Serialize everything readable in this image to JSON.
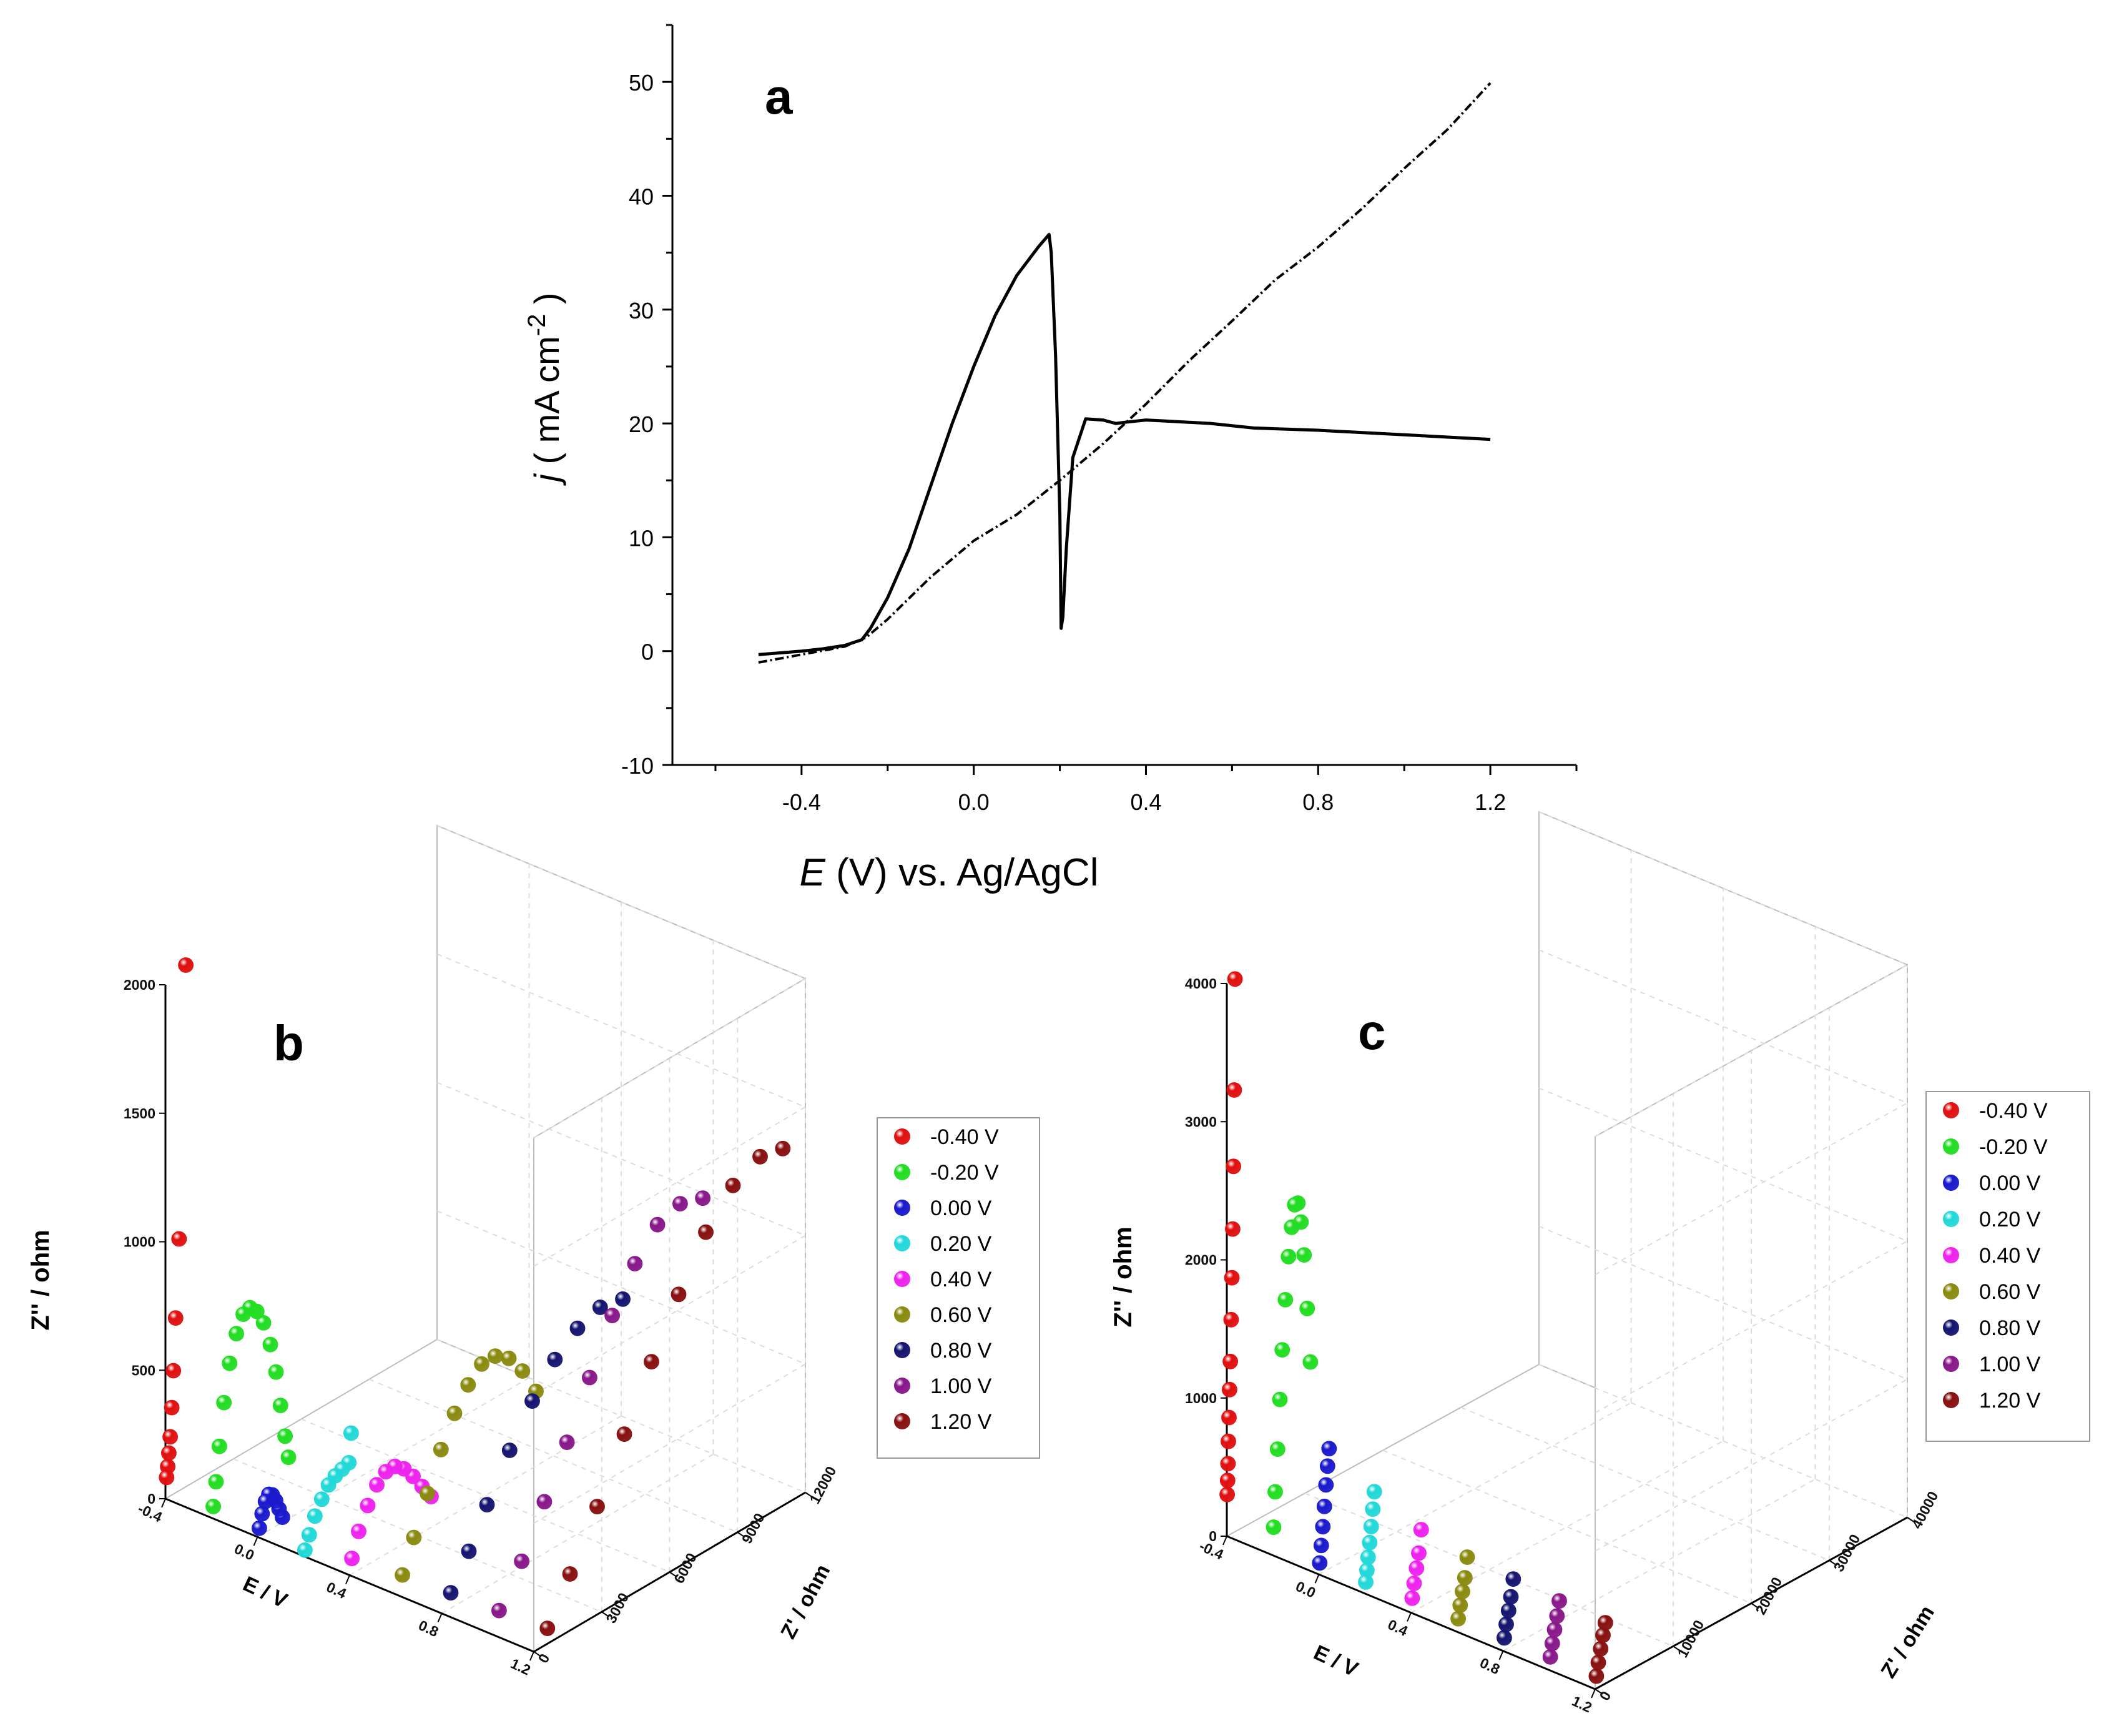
{
  "chart_data": [
    {
      "id": "a",
      "type": "line",
      "panel_label": "a",
      "xlabel": {
        "italic": "E",
        "rest": " (V) vs. Ag/AgCl"
      },
      "ylabel": {
        "italic": "j",
        "rest": " ( mA cm",
        "sup": "-2",
        "end": " )"
      },
      "xlim": [
        -0.7,
        1.4
      ],
      "ylim": [
        -10,
        55
      ],
      "xticks": [
        -0.4,
        0.0,
        0.4,
        0.8,
        1.2
      ],
      "xtick_labels": [
        "-0.4",
        "0.0",
        "0.4",
        "0.8",
        "1.2"
      ],
      "yticks": [
        -10,
        0,
        10,
        20,
        30,
        40,
        50
      ],
      "ytick_labels": [
        "-10",
        "0",
        "10",
        "20",
        "30",
        "40",
        "50"
      ],
      "series": [
        {
          "style": "solid",
          "x": [
            -0.5,
            -0.4,
            -0.35,
            -0.3,
            -0.26,
            -0.24,
            -0.2,
            -0.15,
            -0.1,
            -0.05,
            0.0,
            0.05,
            0.1,
            0.15,
            0.175,
            0.18,
            0.19,
            0.2,
            0.203,
            0.207,
            0.215,
            0.23,
            0.26,
            0.3,
            0.33,
            0.35,
            0.4,
            0.45,
            0.55,
            0.65,
            0.8,
            1.0,
            1.2
          ],
          "y": [
            -0.3,
            0,
            0.2,
            0.5,
            1.0,
            2.0,
            4.7,
            9.0,
            14.5,
            20.0,
            25.0,
            29.5,
            33.0,
            35.5,
            36.6,
            35.0,
            26.0,
            12.0,
            2.0,
            3.0,
            9.0,
            17.0,
            20.4,
            20.3,
            20.0,
            20.1,
            20.3,
            20.2,
            20.0,
            19.6,
            19.4,
            19.0,
            18.6
          ]
        },
        {
          "style": "dashed",
          "x": [
            -0.5,
            -0.4,
            -0.3,
            -0.25,
            -0.2,
            -0.1,
            0.0,
            0.1,
            0.2,
            0.3,
            0.4,
            0.5,
            0.6,
            0.7,
            0.8,
            0.9,
            1.0,
            1.1,
            1.2
          ],
          "y": [
            -1.0,
            -0.3,
            0.4,
            1.2,
            2.8,
            6.5,
            9.7,
            12.0,
            15.0,
            18.2,
            21.7,
            25.5,
            29.0,
            32.6,
            35.5,
            38.8,
            42.4,
            45.8,
            49.9
          ]
        }
      ]
    },
    {
      "id": "b",
      "type": "scatter",
      "panel_label": "b",
      "xlabel": "E / V",
      "ylabel": "Z' / ohm",
      "zlabel": "Z'' / ohm",
      "e_ticks": [
        "-0.4",
        "0.0",
        "0.4",
        "0.8",
        "1.2"
      ],
      "zre_ticks": [
        "0",
        "3000",
        "6000",
        "9000",
        "12000"
      ],
      "zim_ticks": [
        "0",
        "500",
        "1000",
        "1500",
        "2000"
      ],
      "zre_max": 12000,
      "zim_max": 2000,
      "legend_labels": [
        "-0.40 V",
        "-0.20 V",
        "0.00 V",
        "0.20 V",
        "0.40 V",
        "0.60 V",
        "0.80 V",
        "1.00 V",
        "1.20 V"
      ],
      "series": [
        {
          "E": -0.4,
          "zre": [
            50,
            100,
            150,
            210,
            280,
            350,
            450,
            600,
            900
          ],
          "zim": [
            80,
            120,
            170,
            230,
            340,
            480,
            680,
            980,
            2030
          ]
        },
        {
          "E": -0.2,
          "zre": [
            80,
            200,
            350,
            550,
            800,
            1100,
            1400,
            1700,
            2000,
            2300,
            2600,
            2850,
            3050,
            3250,
            3400
          ],
          "zim": [
            40,
            130,
            260,
            420,
            560,
            660,
            720,
            730,
            700,
            640,
            540,
            420,
            280,
            150,
            60
          ]
        },
        {
          "E": 0.0,
          "zre": [
            80,
            200,
            350,
            500,
            650,
            800,
            950,
            1100
          ],
          "zim": [
            30,
            80,
            120,
            140,
            130,
            100,
            60,
            20
          ]
        },
        {
          "E": 0.2,
          "zre": [
            60,
            250,
            500,
            800,
            1100,
            1400,
            1700,
            2000,
            2100
          ],
          "zim": [
            20,
            70,
            130,
            180,
            220,
            240,
            250,
            260,
            370
          ]
        },
        {
          "E": 0.4,
          "zre": [
            100,
            400,
            800,
            1200,
            1600,
            2000,
            2400,
            2800,
            3200,
            3600
          ],
          "zim": [
            60,
            150,
            230,
            290,
            320,
            320,
            290,
            240,
            180,
            120
          ]
        },
        {
          "E": 0.6,
          "zre": [
            300,
            800,
            1400,
            2000,
            2600,
            3200,
            3800,
            4400,
            5000,
            5600,
            6200
          ],
          "zim": [
            60,
            180,
            320,
            460,
            570,
            650,
            700,
            700,
            660,
            580,
            470
          ]
        },
        {
          "E": 0.8,
          "zre": [
            400,
            1200,
            2000,
            3000,
            4000,
            5000,
            6000,
            7000,
            8000
          ],
          "zim": [
            60,
            180,
            320,
            480,
            620,
            730,
            800,
            830,
            810
          ]
        },
        {
          "E": 1.0,
          "zre": [
            500,
            1500,
            2500,
            3500,
            4500,
            5500,
            6500,
            7500,
            8500,
            9500
          ],
          "zim": [
            60,
            200,
            380,
            560,
            760,
            950,
            1100,
            1200,
            1230,
            1200
          ]
        },
        {
          "E": 1.2,
          "zre": [
            600,
            1600,
            2800,
            4000,
            5200,
            6400,
            7600,
            8800,
            10000,
            11000
          ],
          "zim": [
            60,
            220,
            420,
            640,
            860,
            1060,
            1240,
            1360,
            1410,
            1390
          ]
        }
      ]
    },
    {
      "id": "c",
      "type": "scatter",
      "panel_label": "c",
      "xlabel": "E / V",
      "ylabel": "Z' / ohm",
      "zlabel": "Z'' / ohm",
      "e_ticks": [
        "-0.4",
        "0.0",
        "0.4",
        "0.8",
        "1.2"
      ],
      "zre_ticks": [
        "0",
        "10000",
        "20000",
        "30000",
        "40000"
      ],
      "zim_ticks": [
        "0",
        "1000",
        "2000",
        "3000",
        "4000"
      ],
      "zre_max": 40000,
      "zim_max": 4000,
      "legend_labels": [
        "-0.40 V",
        "-0.20 V",
        "0.00 V",
        "0.20 V",
        "0.40 V",
        "0.60 V",
        "0.80 V",
        "1.00 V",
        "1.20 V"
      ],
      "series": [
        {
          "E": -0.4,
          "zre": [
            50,
            100,
            150,
            200,
            280,
            350,
            450,
            550,
            650,
            750,
            850,
            950,
            1050
          ],
          "zim": [
            300,
            400,
            520,
            680,
            850,
            1050,
            1250,
            1550,
            1850,
            2200,
            2650,
            3200,
            4000
          ]
        },
        {
          "E": -0.2,
          "zre": [
            100,
            300,
            600,
            900,
            1200,
            1600,
            2000,
            2400,
            2800,
            3200,
            3600,
            4000,
            4400,
            4800
          ],
          "zim": [
            200,
            450,
            750,
            1100,
            1450,
            1800,
            2100,
            2300,
            2450,
            2450,
            2300,
            2050,
            1650,
            1250
          ]
        },
        {
          "E": 0.0,
          "zre": [
            100,
            300,
            500,
            700,
            900,
            1100,
            1300
          ],
          "zim": [
            80,
            200,
            330,
            470,
            620,
            750,
            870
          ]
        },
        {
          "E": 0.2,
          "zre": [
            100,
            250,
            400,
            600,
            800,
            1000,
            1200
          ],
          "zim": [
            80,
            160,
            250,
            350,
            460,
            580,
            700
          ]
        },
        {
          "E": 0.4,
          "zre": [
            150,
            400,
            700,
            1000,
            1300
          ],
          "zim": [
            100,
            200,
            300,
            400,
            560
          ]
        },
        {
          "E": 0.6,
          "zre": [
            150,
            400,
            700,
            1000,
            1300
          ],
          "zim": [
            90,
            180,
            270,
            360,
            500
          ]
        },
        {
          "E": 0.8,
          "zre": [
            150,
            400,
            700,
            1000,
            1300
          ],
          "zim": [
            90,
            180,
            270,
            360,
            480
          ]
        },
        {
          "E": 1.0,
          "zre": [
            150,
            400,
            700,
            1000,
            1300
          ],
          "zim": [
            90,
            180,
            270,
            360,
            460
          ]
        },
        {
          "E": 1.2,
          "zre": [
            150,
            400,
            700,
            1000,
            1300
          ],
          "zim": [
            90,
            180,
            270,
            360,
            440
          ]
        }
      ]
    }
  ],
  "series_colors": [
    "#e01010",
    "#22dd22",
    "#1a1acc",
    "#22d8d8",
    "#ee22ee",
    "#8a8a10",
    "#151570",
    "#88188a",
    "#881010"
  ]
}
